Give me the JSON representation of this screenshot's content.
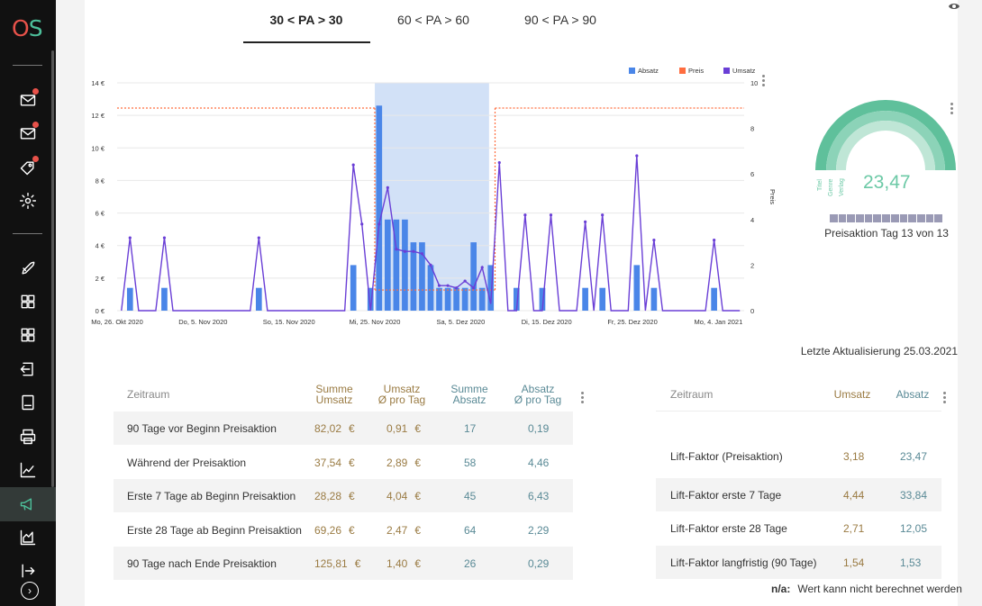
{
  "app": {
    "logo_o": "O",
    "logo_s": "S"
  },
  "tabs": [
    {
      "label": "30 < PA > 30",
      "active": true
    },
    {
      "label": "60 < PA > 60",
      "active": false
    },
    {
      "label": "90 < PA > 90",
      "active": false
    }
  ],
  "sidebar": {
    "items": [
      {
        "icon": "mail-icon",
        "badge": true
      },
      {
        "icon": "mail-icon",
        "badge": true
      },
      {
        "icon": "tag-icon",
        "badge": true
      },
      {
        "icon": "gear-icon",
        "badge": false
      },
      {
        "icon": "rocket-icon",
        "badge": false
      },
      {
        "icon": "grid-icon",
        "badge": false
      },
      {
        "icon": "grid-icon",
        "badge": false
      },
      {
        "icon": "login-icon",
        "badge": false
      },
      {
        "icon": "document-icon",
        "badge": false
      },
      {
        "icon": "printer-icon",
        "badge": false
      },
      {
        "icon": "line-chart-icon",
        "badge": false
      },
      {
        "icon": "megaphone-icon",
        "badge": false,
        "active": true
      },
      {
        "icon": "area-chart-icon",
        "badge": false
      },
      {
        "icon": "export-icon",
        "badge": false
      }
    ],
    "bottom_icon": "chevron-right-icon"
  },
  "chart_data": {
    "type": "bar",
    "legend": [
      "Absatz",
      "Preis",
      "Umsatz"
    ],
    "legend_placement": "top-right",
    "colors": {
      "Absatz": "#4a86e8",
      "Preis": "#ff6d3f",
      "Umsatz": "#6a3fd6",
      "highlight": "#d2e1f7"
    },
    "x_tick_labels": [
      "Mo, 26. Okt 2020",
      "Do, 5. Nov 2020",
      "So, 15. Nov 2020",
      "Mi, 25. Nov 2020",
      "Sa, 5. Dez 2020",
      "Di, 15. Dez 2020",
      "Fr, 25. Dez 2020",
      "Mo, 4. Jan 2021"
    ],
    "y_left_ticks": [
      "0 €",
      "2 €",
      "4 €",
      "6 €",
      "8 €",
      "10 €",
      "12 €",
      "14 €"
    ],
    "y_left_range": [
      0,
      14
    ],
    "y_right_ticks": [
      "0",
      "2",
      "4",
      "6",
      "8",
      "10"
    ],
    "y_right_range": [
      0,
      10
    ],
    "y_right_label": "Preis",
    "start_day": "2020-10-26",
    "highlight_days": [
      30,
      43
    ],
    "absatz": [
      0,
      1,
      0,
      0,
      0,
      1,
      0,
      0,
      0,
      0,
      0,
      0,
      0,
      0,
      0,
      0,
      1,
      0,
      0,
      0,
      0,
      0,
      0,
      0,
      0,
      0,
      0,
      2,
      0,
      1,
      9,
      4,
      4,
      4,
      3,
      3,
      2,
      1,
      1,
      1,
      1,
      3,
      1,
      2,
      0,
      0,
      1,
      0,
      0,
      1,
      0,
      0,
      0,
      0,
      1,
      0,
      1,
      0,
      0,
      0,
      2,
      0,
      1,
      0,
      0,
      0,
      0,
      0,
      0,
      1,
      0,
      0,
      0
    ],
    "umsatz": [
      0,
      3.2,
      0,
      0,
      0,
      3.2,
      0,
      0,
      0,
      0,
      0,
      0,
      0,
      0,
      0,
      0,
      3.2,
      0,
      0,
      0,
      0,
      0,
      0,
      0,
      0,
      0,
      0,
      6.4,
      3.8,
      0.01,
      3.8,
      5.4,
      2.7,
      2.6,
      2.6,
      2.5,
      2.0,
      1.1,
      1.1,
      1.0,
      1.3,
      1.0,
      1.9,
      0.3,
      6.5,
      0,
      0,
      4.2,
      0,
      0,
      4.2,
      0,
      0,
      0,
      3.9,
      0,
      4.2,
      0,
      0,
      0,
      6.8,
      0,
      3.1,
      0,
      0,
      0,
      0,
      0,
      0,
      3.1,
      0,
      0,
      0
    ],
    "preis_days": [
      [
        0,
        29,
        12.45
      ],
      [
        30,
        43,
        1.27
      ],
      [
        44,
        72,
        12.45
      ]
    ]
  },
  "gauge": {
    "value": "23,47",
    "labels": [
      "Titel",
      "Genre",
      "Verlag"
    ],
    "colors": [
      "#5fc09b",
      "#8cd3b8",
      "#bfe6d6"
    ]
  },
  "progress": {
    "label": "Preisaktion Tag 13 von 13",
    "filled": 13,
    "total": 13
  },
  "last_update": "Letzte Aktualisierung 25.03.2021",
  "table_left": {
    "header": {
      "zeitraum": "Zeitraum",
      "summe_umsatz": [
        "Summe",
        "Umsatz"
      ],
      "umsatz_tag": [
        "Umsatz",
        "Ø pro Tag"
      ],
      "summe_absatz": [
        "Summe",
        "Absatz"
      ],
      "absatz_tag": [
        "Absatz",
        "Ø pro Tag"
      ]
    },
    "rows": [
      {
        "label": "90 Tage vor Beginn Preisaktion",
        "summe_umsatz": "82,02",
        "umsatz_tag": "0,91",
        "summe_absatz": "17",
        "absatz_tag": "0,19",
        "unit": "€"
      },
      {
        "label": "Während der Preisaktion",
        "summe_umsatz": "37,54",
        "umsatz_tag": "2,89",
        "summe_absatz": "58",
        "absatz_tag": "4,46",
        "unit": "€"
      },
      {
        "label": "Erste 7 Tage ab Beginn Preisaktion",
        "summe_umsatz": "28,28",
        "umsatz_tag": "4,04",
        "summe_absatz": "45",
        "absatz_tag": "6,43",
        "unit": "€"
      },
      {
        "label": "Erste 28 Tage ab Beginn Preisaktion",
        "summe_umsatz": "69,26",
        "umsatz_tag": "2,47",
        "summe_absatz": "64",
        "absatz_tag": "2,29",
        "unit": "€"
      },
      {
        "label": "90 Tage nach Ende Preisaktion",
        "summe_umsatz": "125,81",
        "umsatz_tag": "1,40",
        "summe_absatz": "26",
        "absatz_tag": "0,29",
        "unit": "€"
      }
    ]
  },
  "table_right": {
    "header": {
      "zeitraum": "Zeitraum",
      "umsatz": "Umsatz",
      "absatz": "Absatz"
    },
    "rows": [
      {
        "label": "Lift-Faktor (Preisaktion)",
        "umsatz": "3,18",
        "absatz": "23,47"
      },
      {
        "label": "Lift-Faktor erste 7 Tage",
        "umsatz": "4,44",
        "absatz": "33,84"
      },
      {
        "label": "Lift-Faktor erste 28 Tage",
        "umsatz": "2,71",
        "absatz": "12,05"
      },
      {
        "label": "Lift-Faktor langfristig (90 Tage)",
        "umsatz": "1,54",
        "absatz": "1,53"
      }
    ]
  },
  "note": {
    "key": "n/a:",
    "text": "Wert kann nicht berechnet werden"
  }
}
